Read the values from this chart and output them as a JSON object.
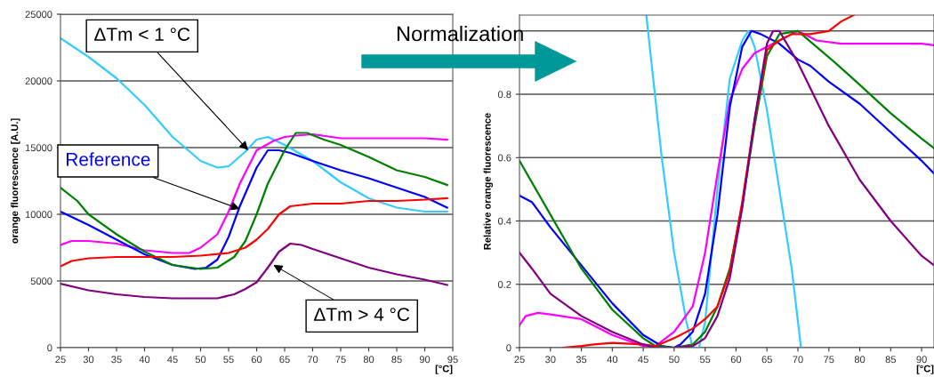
{
  "chart_data": [
    {
      "type": "line",
      "ylabel": "orange fluorescence [A.U.]",
      "xlabel": "[°C]",
      "xlim": [
        25,
        95
      ],
      "xticks": [
        25,
        30,
        35,
        40,
        45,
        50,
        55,
        60,
        65,
        70,
        75,
        80,
        85,
        90,
        95
      ],
      "ylim": [
        0,
        25000
      ],
      "yticks": [
        0,
        5000,
        10000,
        15000,
        20000,
        25000
      ],
      "grid": "y",
      "legend": false,
      "annotations": [
        {
          "text": "ΔTm < 1 °C",
          "x": 58.5,
          "y": 14800
        },
        {
          "text": "Reference",
          "x": 57,
          "y": 10400
        },
        {
          "text": "ΔTm > 4 °C",
          "x": 63,
          "y": 6200
        }
      ],
      "series": [
        {
          "color": "#33ccff",
          "x": [
            25,
            30,
            35,
            40,
            45,
            50,
            53,
            55,
            58,
            60,
            62,
            65,
            70,
            75,
            80,
            85,
            90,
            94
          ],
          "values": [
            23200,
            21800,
            20200,
            18200,
            15800,
            14000,
            13500,
            13600,
            14700,
            15600,
            15800,
            15200,
            14000,
            12400,
            11200,
            10500,
            10200,
            10200
          ]
        },
        {
          "color": "#ff00ff",
          "x": [
            25,
            27,
            30,
            35,
            40,
            45,
            48,
            50,
            53,
            55,
            57,
            60,
            63,
            65,
            67,
            70,
            75,
            80,
            85,
            90,
            94
          ],
          "values": [
            7700,
            8000,
            8000,
            7800,
            7300,
            7100,
            7100,
            7500,
            8500,
            10200,
            12300,
            14800,
            15500,
            15800,
            15900,
            16000,
            15700,
            15700,
            15700,
            15700,
            15600
          ]
        },
        {
          "color": "#0000ff",
          "x": [
            25,
            30,
            35,
            40,
            45,
            49,
            51,
            53,
            55,
            57,
            60,
            62,
            64,
            66,
            70,
            75,
            80,
            85,
            90,
            94
          ],
          "values": [
            10200,
            9200,
            8100,
            7000,
            6200,
            5900,
            6000,
            6600,
            8300,
            10600,
            13500,
            14800,
            14800,
            14600,
            14000,
            13300,
            12700,
            12000,
            11300,
            10500
          ]
        },
        {
          "color": "#008000",
          "x": [
            25,
            28,
            30,
            35,
            40,
            45,
            50,
            53,
            56,
            58,
            60,
            62,
            65,
            67,
            69,
            72,
            75,
            80,
            85,
            90,
            94
          ],
          "values": [
            12000,
            11000,
            10000,
            8500,
            7200,
            6200,
            5900,
            6000,
            6800,
            8000,
            10000,
            12300,
            14800,
            16100,
            16100,
            15600,
            15200,
            14300,
            13300,
            12800,
            12200
          ]
        },
        {
          "color": "#ff0000",
          "x": [
            25,
            27,
            30,
            35,
            40,
            45,
            50,
            55,
            58,
            60,
            62,
            64,
            66,
            70,
            75,
            80,
            85,
            90,
            94
          ],
          "values": [
            6100,
            6500,
            6700,
            6800,
            6800,
            6800,
            6900,
            7100,
            7500,
            8100,
            8900,
            10000,
            10600,
            10800,
            10800,
            11000,
            11000,
            11100,
            11200
          ]
        },
        {
          "color": "#800080",
          "x": [
            25,
            30,
            35,
            40,
            45,
            50,
            53,
            56,
            58,
            60,
            62,
            64,
            66,
            68,
            70,
            75,
            80,
            85,
            90,
            94
          ],
          "values": [
            4800,
            4300,
            4000,
            3800,
            3700,
            3700,
            3700,
            4000,
            4400,
            4900,
            6000,
            7200,
            7800,
            7700,
            7400,
            6700,
            6000,
            5500,
            5100,
            4700
          ]
        }
      ]
    },
    {
      "type": "line",
      "ylabel": "Relative orange fluorescence",
      "xlabel": "[°C]",
      "xlim": [
        25,
        92
      ],
      "xticks": [
        25,
        30,
        35,
        40,
        45,
        50,
        55,
        60,
        65,
        70,
        75,
        80,
        85,
        90
      ],
      "ylim": [
        0,
        1.05
      ],
      "yticks": [
        0,
        0.2,
        0.4,
        0.6,
        0.8,
        {
          "value": 1,
          "label": null
        }
      ],
      "grid": "y",
      "legend": false,
      "annotations": [
        "Normalization"
      ],
      "series": [
        {
          "color": "#33ccff",
          "x": [
            45.5,
            48,
            50,
            52,
            53,
            54,
            55,
            57,
            59,
            61,
            62,
            63,
            65,
            67,
            69,
            70.5
          ],
          "values": [
            1.05,
            0.6,
            0.3,
            0.08,
            0,
            0,
            0.08,
            0.5,
            0.85,
            0.97,
            1.0,
            0.95,
            0.75,
            0.5,
            0.25,
            0
          ]
        },
        {
          "color": "#ff00ff",
          "x": [
            25,
            26,
            28,
            30,
            35,
            40,
            45,
            47,
            50,
            53,
            55,
            57,
            59,
            61,
            63,
            66,
            69,
            70,
            73,
            77,
            80,
            85,
            90,
            92
          ],
          "values": [
            0.07,
            0.1,
            0.11,
            0.105,
            0.09,
            0.04,
            0.005,
            0.005,
            0.05,
            0.13,
            0.3,
            0.55,
            0.78,
            0.88,
            0.93,
            0.96,
            0.99,
            1.0,
            0.97,
            0.96,
            0.96,
            0.96,
            0.96,
            0.955
          ]
        },
        {
          "color": "#0000ff",
          "x": [
            25,
            27,
            30,
            35,
            40,
            45,
            48,
            50,
            51,
            53,
            55,
            57,
            59,
            61,
            62.5,
            64,
            67,
            70,
            72,
            75,
            80,
            85,
            90,
            92
          ],
          "values": [
            0.48,
            0.46,
            0.38,
            0.26,
            0.14,
            0.04,
            0.005,
            0,
            0.01,
            0.05,
            0.17,
            0.42,
            0.76,
            0.95,
            1.0,
            0.99,
            0.96,
            0.91,
            0.89,
            0.84,
            0.77,
            0.68,
            0.59,
            0.55
          ]
        },
        {
          "color": "#008000",
          "x": [
            25,
            30,
            35,
            40,
            45,
            47,
            50,
            53,
            55,
            57,
            59,
            61,
            63,
            65,
            67,
            70,
            73,
            76,
            80,
            85,
            90,
            92
          ],
          "values": [
            0.59,
            0.42,
            0.25,
            0.12,
            0.03,
            0.005,
            0,
            0.01,
            0.05,
            0.13,
            0.25,
            0.45,
            0.7,
            0.92,
            0.99,
            1.0,
            0.95,
            0.9,
            0.83,
            0.74,
            0.66,
            0.63
          ]
        },
        {
          "color": "#ff0000",
          "x": [
            32,
            35,
            37,
            40,
            45,
            47,
            50,
            53,
            55,
            57,
            59,
            61,
            63,
            65,
            67,
            69,
            72,
            75,
            77,
            79
          ],
          "values": [
            0,
            0.005,
            0.01,
            0.015,
            0.01,
            0.005,
            0.03,
            0.06,
            0.09,
            0.13,
            0.24,
            0.46,
            0.72,
            0.94,
            0.97,
            0.99,
            0.99,
            1.0,
            1.03,
            1.05
          ]
        },
        {
          "color": "#800080",
          "x": [
            25,
            27,
            30,
            35,
            40,
            45,
            47,
            50,
            53,
            55,
            57,
            59,
            61,
            63,
            65,
            66,
            67,
            70,
            75,
            80,
            85,
            90,
            92
          ],
          "values": [
            0.3,
            0.25,
            0.17,
            0.1,
            0.05,
            0.01,
            0,
            0,
            0.005,
            0.03,
            0.1,
            0.22,
            0.44,
            0.72,
            0.96,
            1.0,
            1.0,
            0.9,
            0.7,
            0.53,
            0.4,
            0.29,
            0.26
          ]
        }
      ]
    }
  ]
}
